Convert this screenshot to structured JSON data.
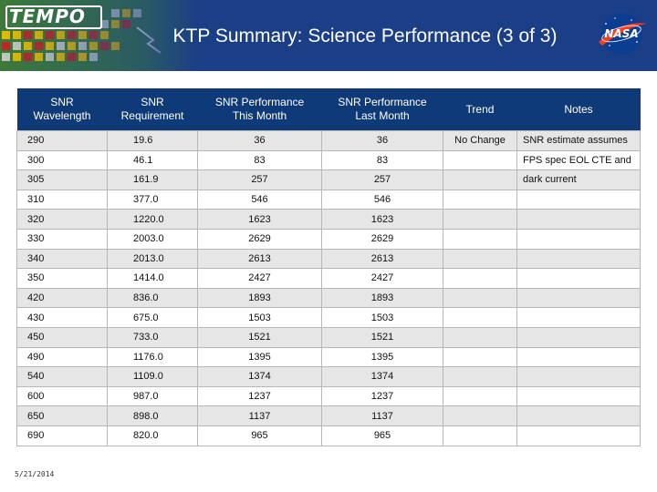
{
  "header": {
    "logo": "TEMPO",
    "title": "KTP Summary: Science Performance (3 of 3)",
    "nasa_logo": "NASA"
  },
  "table": {
    "columns": [
      "SNR\nWavelength",
      "SNR\nRequirement",
      "SNR Performance\nThis Month",
      "SNR Performance\nLast Month",
      "Trend",
      "Notes"
    ],
    "rows": [
      {
        "wavelength": "290",
        "requirement": "19.6",
        "this_month": "36",
        "last_month": "36",
        "trend": "No Change",
        "notes": "SNR estimate assumes"
      },
      {
        "wavelength": "300",
        "requirement": "46.1",
        "this_month": "83",
        "last_month": "83",
        "trend": "",
        "notes": "FPS spec EOL CTE and"
      },
      {
        "wavelength": "305",
        "requirement": "161.9",
        "this_month": "257",
        "last_month": "257",
        "trend": "",
        "notes": "dark current"
      },
      {
        "wavelength": "310",
        "requirement": "377.0",
        "this_month": "546",
        "last_month": "546",
        "trend": "",
        "notes": ""
      },
      {
        "wavelength": "320",
        "requirement": "1220.0",
        "this_month": "1623",
        "last_month": "1623",
        "trend": "",
        "notes": ""
      },
      {
        "wavelength": "330",
        "requirement": "2003.0",
        "this_month": "2629",
        "last_month": "2629",
        "trend": "",
        "notes": ""
      },
      {
        "wavelength": "340",
        "requirement": "2013.0",
        "this_month": "2613",
        "last_month": "2613",
        "trend": "",
        "notes": ""
      },
      {
        "wavelength": "350",
        "requirement": "1414.0",
        "this_month": "2427",
        "last_month": "2427",
        "trend": "",
        "notes": ""
      },
      {
        "wavelength": "420",
        "requirement": "836.0",
        "this_month": "1893",
        "last_month": "1893",
        "trend": "",
        "notes": ""
      },
      {
        "wavelength": "430",
        "requirement": "675.0",
        "this_month": "1503",
        "last_month": "1503",
        "trend": "",
        "notes": ""
      },
      {
        "wavelength": "450",
        "requirement": "733.0",
        "this_month": "1521",
        "last_month": "1521",
        "trend": "",
        "notes": ""
      },
      {
        "wavelength": "490",
        "requirement": "1176.0",
        "this_month": "1395",
        "last_month": "1395",
        "trend": "",
        "notes": ""
      },
      {
        "wavelength": "540",
        "requirement": "1109.0",
        "this_month": "1374",
        "last_month": "1374",
        "trend": "",
        "notes": ""
      },
      {
        "wavelength": "600",
        "requirement": "987.0",
        "this_month": "1237",
        "last_month": "1237",
        "trend": "",
        "notes": ""
      },
      {
        "wavelength": "650",
        "requirement": "898.0",
        "this_month": "1137",
        "last_month": "1137",
        "trend": "",
        "notes": ""
      },
      {
        "wavelength": "690",
        "requirement": "820.0",
        "this_month": "965",
        "last_month": "965",
        "trend": "",
        "notes": ""
      }
    ]
  },
  "footer": {
    "date": "5/21/2014"
  },
  "colors": {
    "banner": "#1b3f86",
    "table_header": "#0f3a78",
    "row_shade": "#e6e6e6"
  }
}
